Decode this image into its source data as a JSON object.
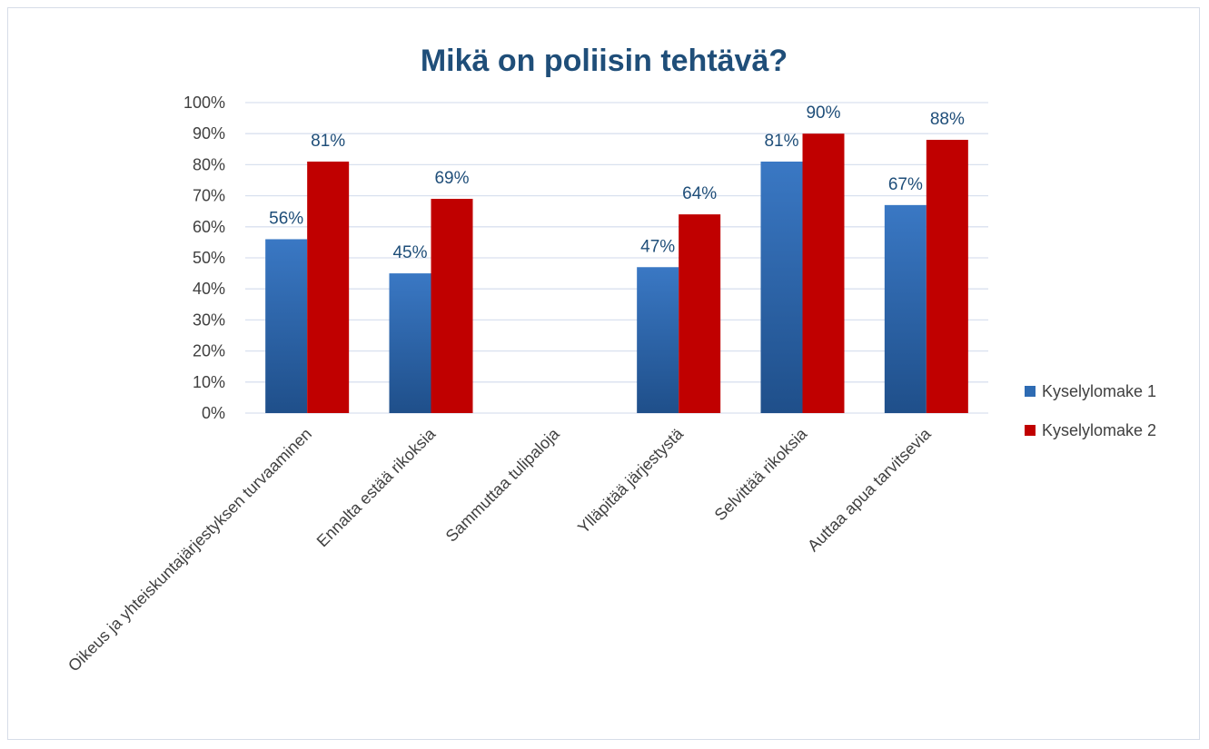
{
  "chart_data": {
    "type": "bar",
    "title": "Mikä on poliisin tehtävä?",
    "categories": [
      "Oikeus ja yhteiskuntajärjestyksen turvaaminen",
      "Ennalta estää rikoksia",
      "Sammuttaa tulipaloja",
      "Ylläpitää järjestystä",
      "Selvittää rikoksia",
      "Auttaa apua tarvitsevia"
    ],
    "series": [
      {
        "name": "Kyselylomake 1",
        "color": "#2e6bb3",
        "values": [
          56,
          45,
          null,
          47,
          81,
          67
        ],
        "labels": [
          "56%",
          "45%",
          "",
          "47%",
          "81%",
          "67%"
        ]
      },
      {
        "name": "Kyselylomake 2",
        "color": "#c00000",
        "values": [
          81,
          69,
          null,
          64,
          90,
          88
        ],
        "labels": [
          "81%",
          "69%",
          "",
          "64%",
          "90%",
          "88%"
        ]
      }
    ],
    "yticks": [
      "0%",
      "10%",
      "20%",
      "30%",
      "40%",
      "50%",
      "60%",
      "70%",
      "80%",
      "90%",
      "100%"
    ],
    "ylim": [
      0,
      100
    ],
    "grid": true,
    "legend_position": "right"
  }
}
